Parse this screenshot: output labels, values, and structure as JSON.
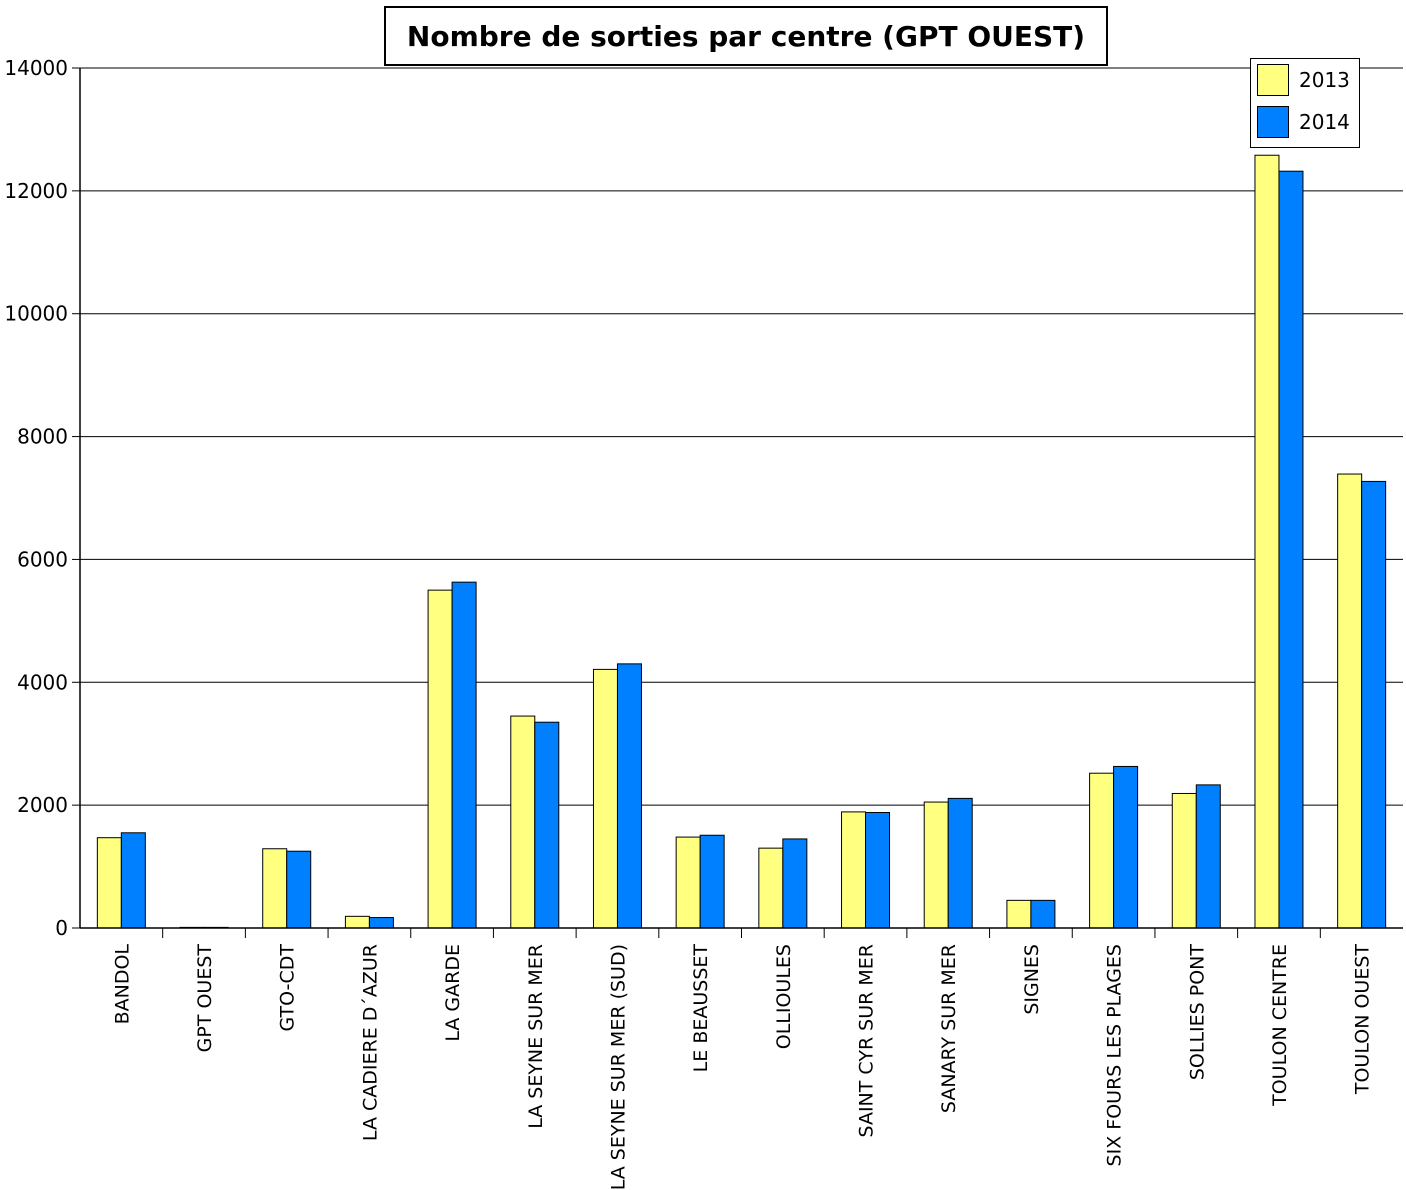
{
  "chart_data": {
    "type": "bar",
    "title": "Nombre de sorties par centre (GPT OUEST)",
    "xlabel": "",
    "ylabel": "",
    "ylim": [
      0,
      14000
    ],
    "yticks": [
      0,
      2000,
      4000,
      6000,
      8000,
      10000,
      12000,
      14000
    ],
    "ytick_labels": [
      "0",
      "2000",
      "4000",
      "6000",
      "8000",
      "10000",
      "12000",
      "14000"
    ],
    "grid": "horizontal",
    "legend_position": "top-right",
    "categories": [
      "BANDOL",
      "GPT OUEST",
      "GTO-CDT",
      "LA CADIERE D´AZUR",
      "LA GARDE",
      "LA SEYNE SUR MER",
      "LA SEYNE SUR MER (SUD)",
      "LE BEAUSSET",
      "OLLIOULES",
      "SAINT CYR SUR MER",
      "SANARY SUR MER",
      "SIGNES",
      "SIX FOURS LES PLAGES",
      "SOLLIES PONT",
      "TOULON CENTRE",
      "TOULON OUEST"
    ],
    "series": [
      {
        "name": "2013",
        "color": "#ffff80",
        "values": [
          1470,
          10,
          1290,
          190,
          5500,
          3450,
          4210,
          1480,
          1300,
          1890,
          2050,
          450,
          2520,
          2190,
          12580,
          7390
        ]
      },
      {
        "name": "2014",
        "color": "#0080ff",
        "values": [
          1550,
          10,
          1250,
          170,
          5630,
          3350,
          4300,
          1510,
          1450,
          1880,
          2110,
          450,
          2630,
          2330,
          12320,
          7270
        ]
      }
    ]
  }
}
